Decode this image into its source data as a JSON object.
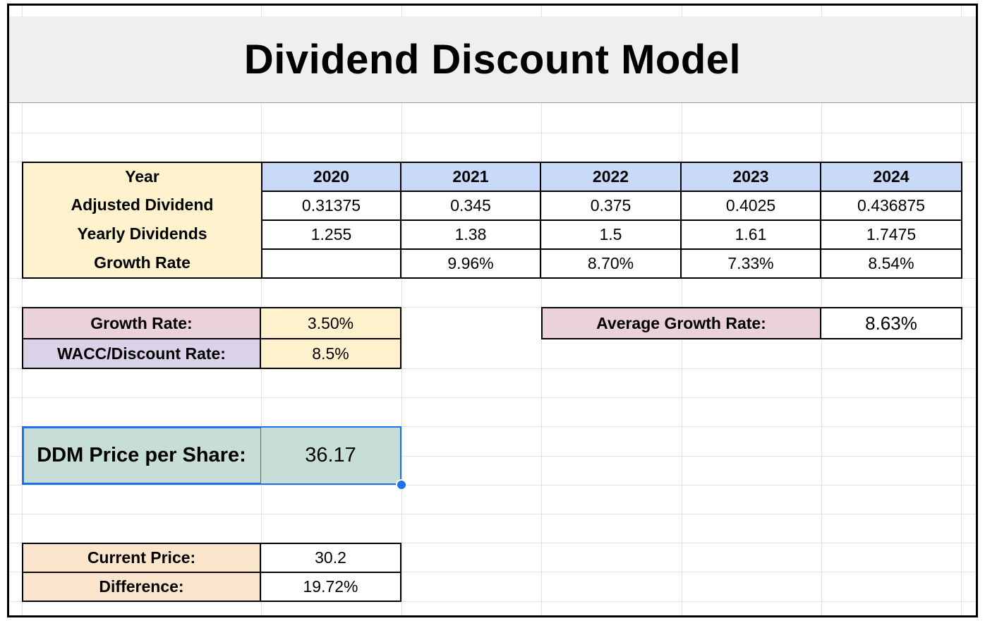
{
  "title": "Dividend Discount Model",
  "table": {
    "header_label": "Year",
    "years": [
      "2020",
      "2021",
      "2022",
      "2023",
      "2024"
    ],
    "rows": [
      {
        "label": "Adjusted Dividend",
        "values": [
          "0.31375",
          "0.345",
          "0.375",
          "0.4025",
          "0.436875"
        ]
      },
      {
        "label": "Yearly Dividends",
        "values": [
          "1.255",
          "1.38",
          "1.5",
          "1.61",
          "1.7475"
        ]
      },
      {
        "label": "Growth Rate",
        "values": [
          "",
          "9.96%",
          "8.70%",
          "7.33%",
          "8.54%"
        ]
      }
    ]
  },
  "inputs": {
    "growth_rate_label": "Growth Rate:",
    "growth_rate_value": "3.50%",
    "wacc_label": "WACC/Discount Rate:",
    "wacc_value": "8.5%"
  },
  "average": {
    "label": "Average Growth Rate:",
    "value": "8.63%"
  },
  "ddm": {
    "label": "DDM Price per Share:",
    "value": "36.17"
  },
  "comparison": {
    "current_price_label": "Current Price:",
    "current_price_value": "30.2",
    "difference_label": "Difference:",
    "difference_value": "19.72%"
  },
  "colors": {
    "yellow": "#fff2cc",
    "blue": "#c9daf8",
    "pink": "#ead1dc",
    "purple": "#d9d2e9",
    "peach": "#fce5cd",
    "teal": "#c6ddd8",
    "selection": "#1a73e8"
  }
}
